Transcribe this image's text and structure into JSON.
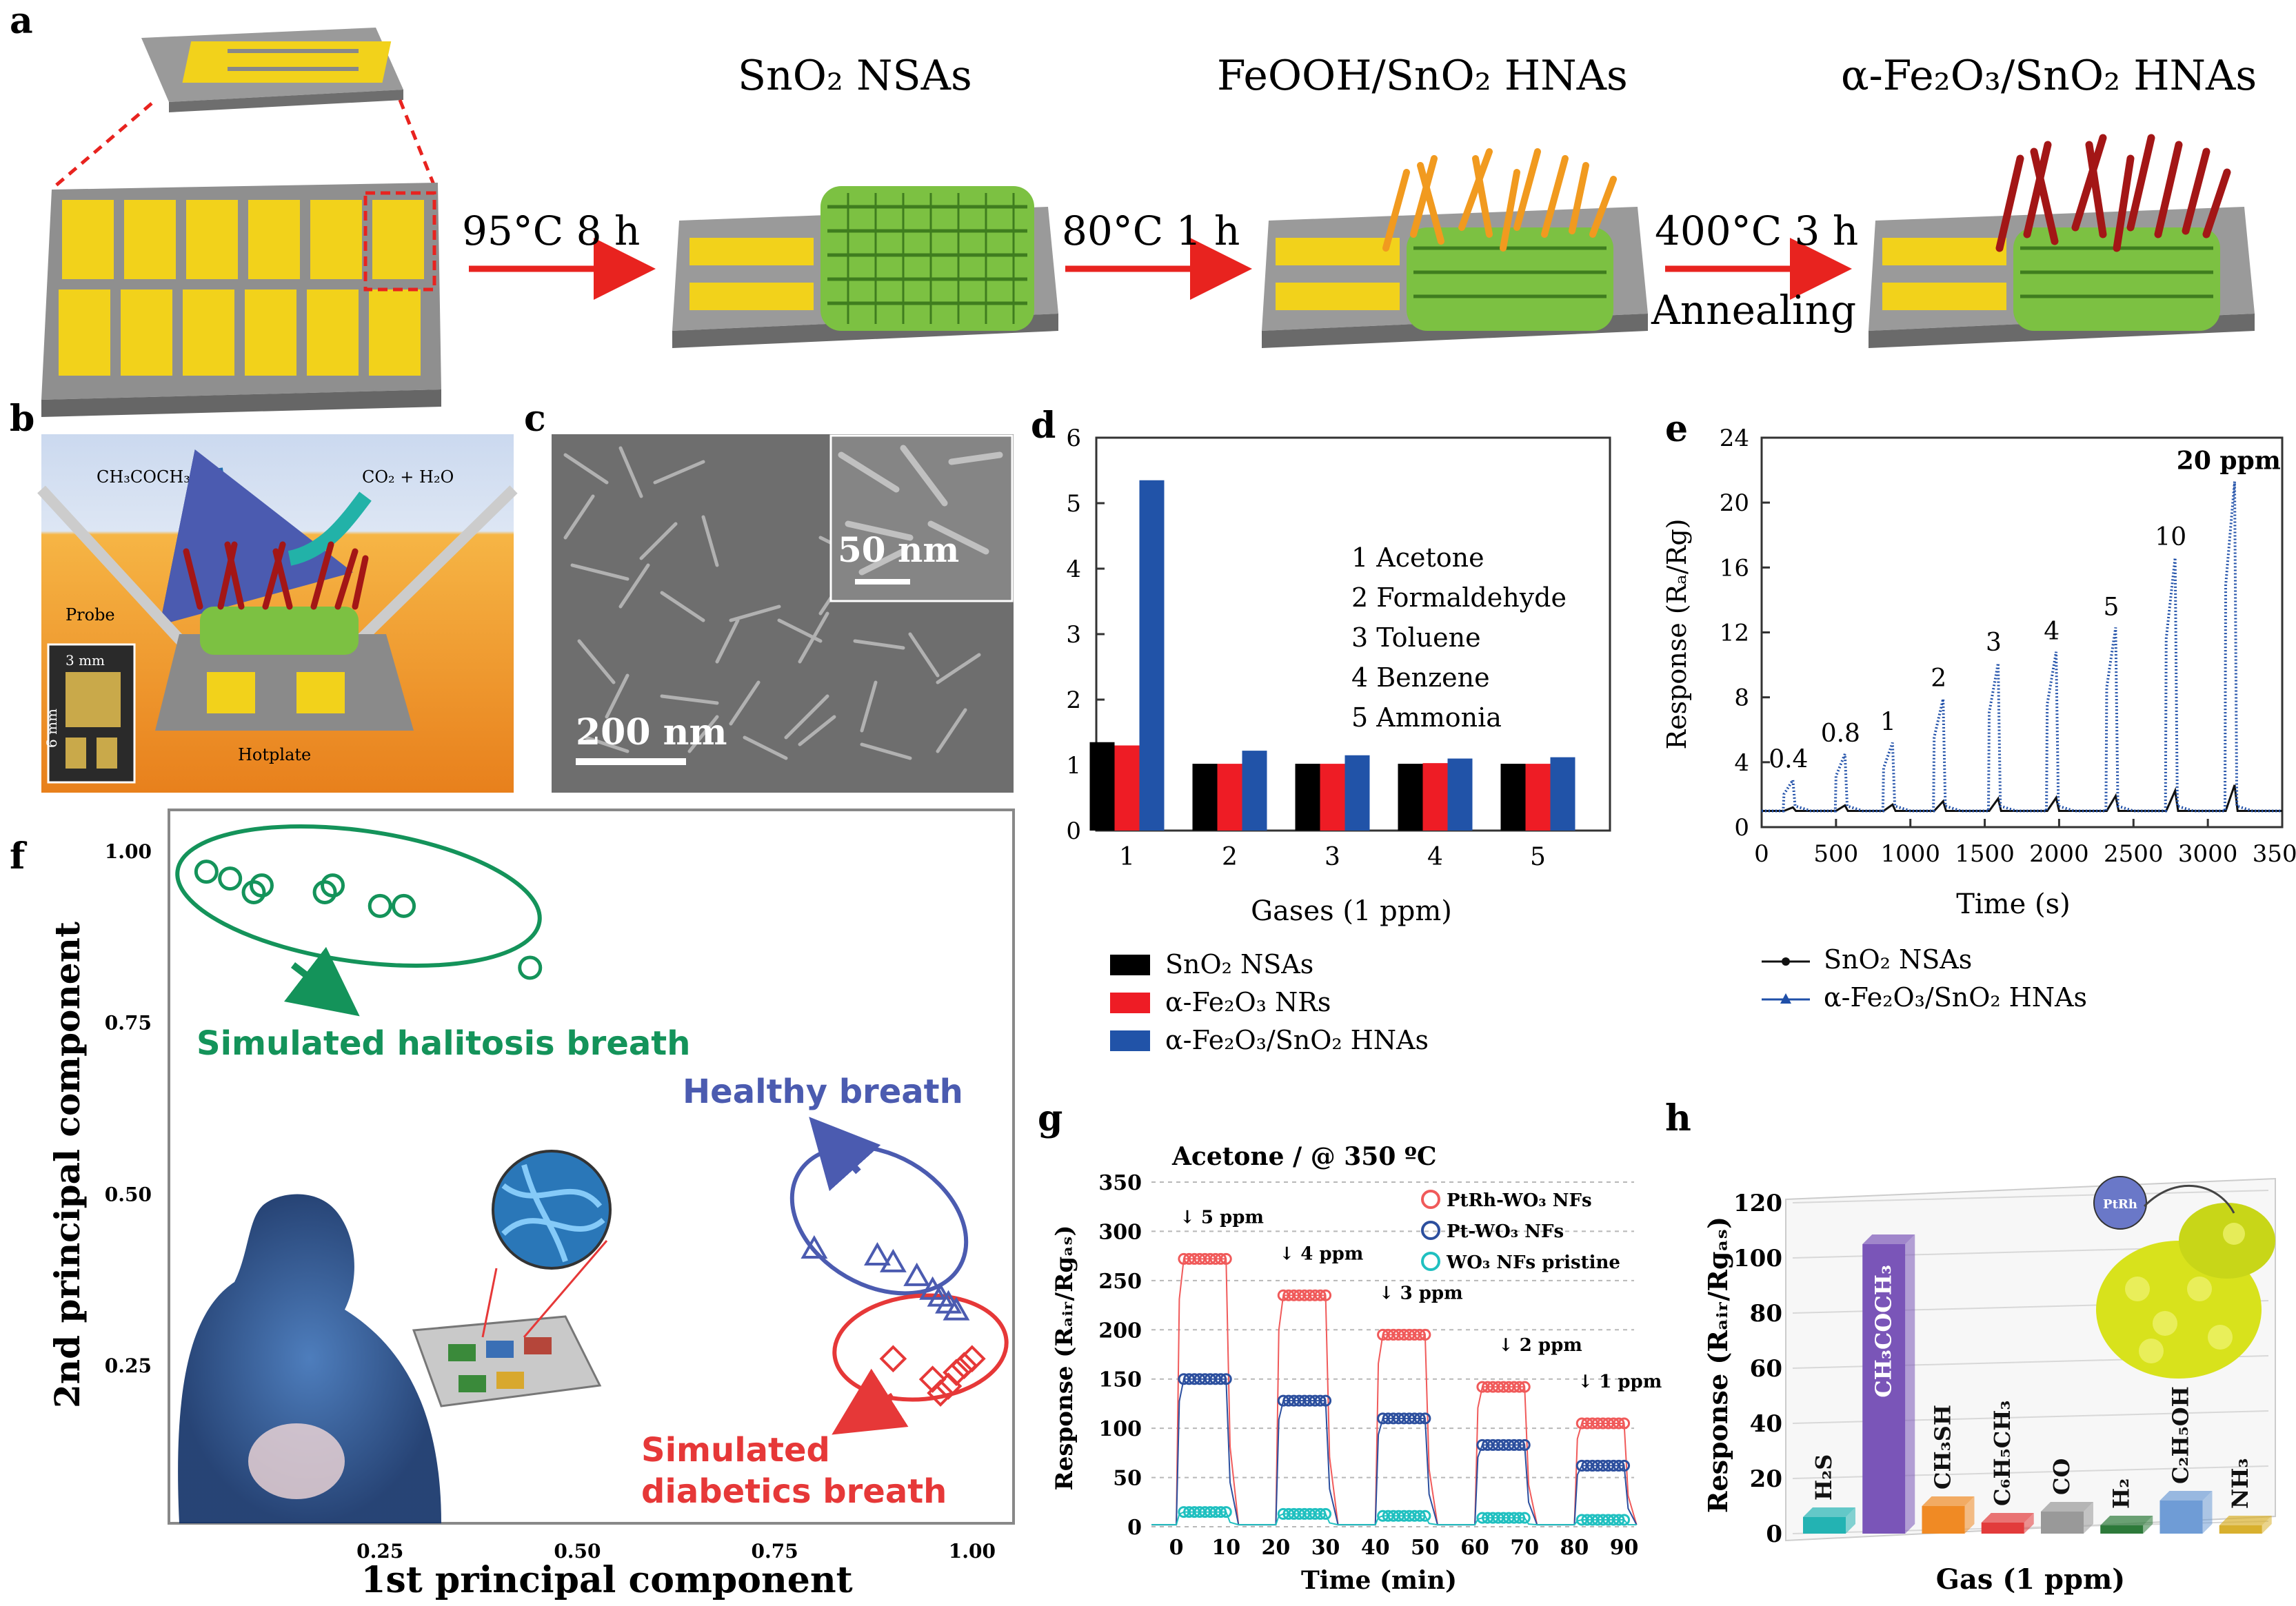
{
  "colors": {
    "red_arrow": "#e8231f",
    "gold_pad": "#f2d21b",
    "green_sheet": "#7cc142",
    "orange_rod": "#f19a1f",
    "dark_red_rod": "#a31616",
    "navy_series": "#1f4fa8",
    "green_text": "#14935a",
    "blue_text": "#4b5bb0",
    "red_text": "#e63838"
  },
  "panel_labels": {
    "a": "a",
    "b": "b",
    "c": "c",
    "d": "d",
    "e": "e",
    "f": "f",
    "g": "g",
    "h": "h"
  },
  "panel_a": {
    "stages": [
      "SnO₂ NSAs",
      "FeOOH/SnO₂ HNAs",
      "α-Fe₂O₃/SnO₂ HNAs"
    ],
    "steps": [
      "95°C 8 h",
      "80°C 1 h",
      "400°C 3 h",
      "Annealing"
    ]
  },
  "panel_b": {
    "gas_in": "CH₃COCH₃",
    "gas_out": "CO₂ + H₂O",
    "probe": "Probe",
    "hotplate": "Hotplate",
    "dim_w": "3 mm",
    "dim_h": "6 mm"
  },
  "panel_c": {
    "scale_main": "200 nm",
    "scale_inset": "50 nm"
  },
  "panel_d": {
    "chart_data": {
      "type": "bar",
      "categories": [
        "1",
        "2",
        "3",
        "4",
        "5"
      ],
      "series": [
        {
          "name": "SnO₂ NSAs",
          "color": "#000000",
          "values": [
            1.35,
            1.02,
            1.02,
            1.02,
            1.02
          ]
        },
        {
          "name": "α-Fe₂O₃ NRs",
          "color": "#ee1c25",
          "values": [
            1.3,
            1.02,
            1.02,
            1.03,
            1.02
          ]
        },
        {
          "name": "α-Fe₂O₃/SnO₂ HNAs",
          "color": "#2153a8",
          "values": [
            5.35,
            1.22,
            1.15,
            1.1,
            1.12
          ]
        }
      ],
      "ylim": [
        0,
        6
      ],
      "yticks": [
        "0",
        "1",
        "2",
        "3",
        "4",
        "5",
        "6"
      ],
      "xlabel": "Gases (1 ppm)",
      "ylabel": "",
      "annotations": [
        "1 Acetone",
        "2 Formaldehyde",
        "3 Toluene",
        "4 Benzene",
        "5 Ammonia"
      ]
    }
  },
  "panel_e": {
    "chart_data": {
      "type": "line",
      "xlabel": "Time (s)",
      "ylabel": "Response (Rₐ/Rɡ)",
      "xlim": [
        0,
        3500
      ],
      "ylim": [
        0,
        24
      ],
      "xticks": [
        "0",
        "500",
        "1000",
        "1500",
        "2000",
        "2500",
        "3000",
        "3500"
      ],
      "yticks": [
        "0",
        "4",
        "8",
        "12",
        "16",
        "20",
        "24"
      ],
      "pulses": [
        {
          "label": "0.4",
          "t": 150,
          "peak": 2.9
        },
        {
          "label": "0.8",
          "t": 500,
          "peak": 4.5
        },
        {
          "label": "1",
          "t": 820,
          "peak": 5.2
        },
        {
          "label": "2",
          "t": 1160,
          "peak": 7.9
        },
        {
          "label": "3",
          "t": 1530,
          "peak": 10.1
        },
        {
          "label": "4",
          "t": 1920,
          "peak": 10.8
        },
        {
          "label": "5",
          "t": 2320,
          "peak": 12.3
        },
        {
          "label": "10",
          "t": 2720,
          "peak": 16.6
        },
        {
          "label": "20 ppm",
          "t": 3120,
          "peak": 21.3
        }
      ],
      "baseline": 1.0,
      "legend": [
        "SnO₂ NSAs",
        "α-Fe₂O₃/SnO₂ HNAs"
      ]
    }
  },
  "panel_f": {
    "chart_data": {
      "type": "scatter",
      "xlabel": "1st principal component",
      "ylabel": "2nd principal component",
      "xticks": [
        "0.25",
        "0.50",
        "0.75",
        "1.00"
      ],
      "yticks": [
        "0.25",
        "0.50",
        "0.75",
        "1.00"
      ],
      "series": [
        {
          "name": "Simulated halitosis breath",
          "marker": "circle",
          "points": [
            [
              0.03,
              0.97
            ],
            [
              0.06,
              0.96
            ],
            [
              0.09,
              0.94
            ],
            [
              0.1,
              0.95
            ],
            [
              0.18,
              0.94
            ],
            [
              0.19,
              0.95
            ],
            [
              0.25,
              0.92
            ],
            [
              0.28,
              0.92
            ],
            [
              0.44,
              0.83
            ]
          ]
        },
        {
          "name": "Healthy breath",
          "marker": "triangle",
          "points": [
            [
              0.8,
              0.42
            ],
            [
              0.88,
              0.41
            ],
            [
              0.9,
              0.4
            ],
            [
              0.93,
              0.38
            ],
            [
              0.95,
              0.36
            ],
            [
              0.97,
              0.34
            ],
            [
              0.98,
              0.33
            ],
            [
              0.96,
              0.35
            ]
          ]
        },
        {
          "name": "Simulated diabetics breath",
          "marker": "diamond",
          "points": [
            [
              0.9,
              0.26
            ],
            [
              0.95,
              0.23
            ],
            [
              0.97,
              0.22
            ],
            [
              0.98,
              0.24
            ],
            [
              0.99,
              0.25
            ],
            [
              1.0,
              0.26
            ],
            [
              0.96,
              0.21
            ]
          ]
        }
      ],
      "labels": {
        "halitosis": "Simulated halitosis breath",
        "healthy": "Healthy breath",
        "diabetics_1": "Simulated",
        "diabetics_2": "diabetics breath"
      }
    }
  },
  "panel_g": {
    "chart_data": {
      "type": "line",
      "title": "Acetone / @ 350 ºC",
      "xlabel": "Time (min)",
      "ylabel": "Response (Rₐᵢᵣ/Rɡₐₛ)",
      "xlim": [
        -5,
        92
      ],
      "ylim": [
        0,
        350
      ],
      "xticks": [
        "0",
        "10",
        "20",
        "30",
        "40",
        "50",
        "60",
        "70",
        "80",
        "90"
      ],
      "yticks": [
        "0",
        "50",
        "100",
        "150",
        "200",
        "250",
        "300",
        "350"
      ],
      "cycles": [
        {
          "label": "5 ppm",
          "start": 0,
          "end": 10
        },
        {
          "label": "4 ppm",
          "start": 20,
          "end": 30
        },
        {
          "label": "3 ppm",
          "start": 40,
          "end": 50
        },
        {
          "label": "2 ppm",
          "start": 60,
          "end": 70
        },
        {
          "label": "1 ppm",
          "start": 80,
          "end": 90
        }
      ],
      "series": [
        {
          "name": "PtRh-WO₃ NFs",
          "color": "#f05a5a",
          "values": [
            272,
            235,
            195,
            142,
            105
          ]
        },
        {
          "name": "Pt-WO₃ NFs",
          "color": "#2c4f9e",
          "values": [
            150,
            128,
            110,
            83,
            62
          ]
        },
        {
          "name": "WO₃ NFs pristine",
          "color": "#20c0c0",
          "values": [
            15,
            13,
            11,
            9,
            7
          ]
        }
      ]
    }
  },
  "panel_h": {
    "chart_data": {
      "type": "bar",
      "xlabel": "Gas (1 ppm)",
      "ylabel": "Response (Rₐᵢᵣ/Rɡₐₛ)",
      "ylim": [
        0,
        120
      ],
      "yticks": [
        "0",
        "20",
        "40",
        "60",
        "80",
        "100",
        "120"
      ],
      "categories": [
        "H₂S",
        "CH₃COCH₃",
        "CH₃SH",
        "C₆H₅CH₃",
        "CO",
        "H₂",
        "C₂H₅OH",
        "NH₃"
      ],
      "values": [
        6,
        105,
        10,
        4,
        8,
        3,
        12,
        3
      ],
      "colors": [
        "#23b3b3",
        "#7a55b8",
        "#f08a24",
        "#e23b3b",
        "#999999",
        "#2d7a3a",
        "#6f9cd6",
        "#d8b02e"
      ],
      "inset_label": "PtRh"
    }
  }
}
